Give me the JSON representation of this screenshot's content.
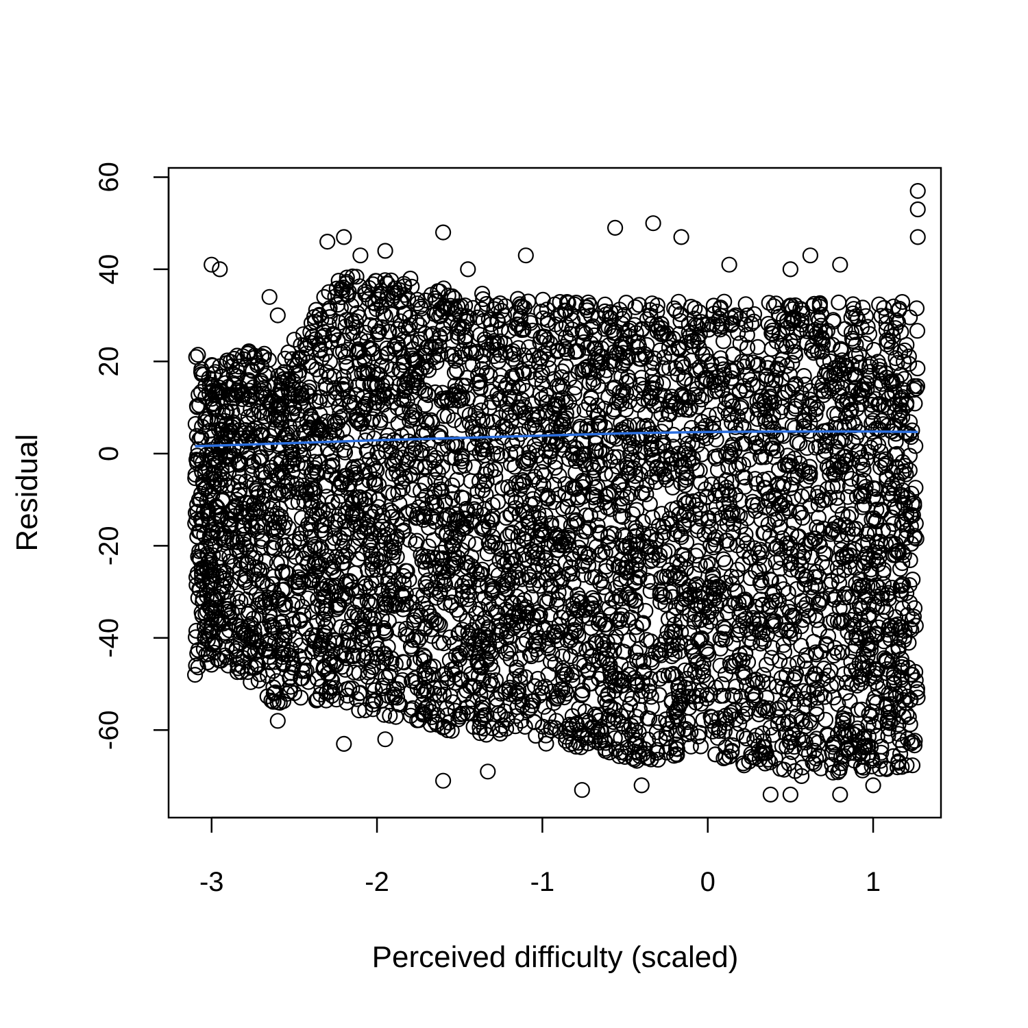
{
  "chart_data": {
    "type": "scatter",
    "title": "",
    "xlabel": "Perceived difficulty (scaled)",
    "ylabel": "Residual",
    "xlim": [
      -3.26,
      1.41
    ],
    "ylim": [
      -79,
      62
    ],
    "x_ticks": [
      -3,
      -2,
      -1,
      0,
      1
    ],
    "y_ticks": [
      -60,
      -40,
      -20,
      0,
      20,
      40,
      60
    ],
    "x_tick_labels": [
      "-3",
      "-2",
      "-1",
      "0",
      "1"
    ],
    "y_tick_labels": [
      "-60",
      "-40",
      "-20",
      "0",
      "20",
      "40",
      "60"
    ],
    "grid": false,
    "legend": "none",
    "colors": {
      "points": "#000000",
      "trend": "#2b6fe0"
    },
    "x_range": [
      -3.1,
      1.27
    ],
    "upper_envelope": [
      [
        -3.1,
        23
      ],
      [
        -2.95,
        19
      ],
      [
        -2.75,
        25
      ],
      [
        -2.6,
        20
      ],
      [
        -2.4,
        30
      ],
      [
        -2.2,
        40
      ],
      [
        -2.0,
        38
      ],
      [
        -1.8,
        38
      ],
      [
        -1.6,
        36
      ],
      [
        -1.2,
        34
      ],
      [
        -0.8,
        33
      ],
      [
        -0.4,
        33
      ],
      [
        0.0,
        33
      ],
      [
        0.4,
        33
      ],
      [
        0.8,
        33
      ],
      [
        1.27,
        33
      ]
    ],
    "lower_envelope": [
      [
        -3.1,
        -48
      ],
      [
        -2.95,
        -45
      ],
      [
        -2.75,
        -50
      ],
      [
        -2.6,
        -55
      ],
      [
        -2.4,
        -54
      ],
      [
        -2.2,
        -55
      ],
      [
        -2.0,
        -57
      ],
      [
        -1.8,
        -58
      ],
      [
        -1.6,
        -60
      ],
      [
        -1.2,
        -62
      ],
      [
        -0.8,
        -64
      ],
      [
        -0.4,
        -67
      ],
      [
        0.0,
        -65
      ],
      [
        0.4,
        -70
      ],
      [
        0.8,
        -70
      ],
      [
        1.27,
        -68
      ]
    ],
    "outliers": [
      [
        -3.0,
        41
      ],
      [
        -2.95,
        40
      ],
      [
        -2.65,
        34
      ],
      [
        -2.6,
        30
      ],
      [
        -2.3,
        46
      ],
      [
        -2.2,
        47
      ],
      [
        -2.1,
        43
      ],
      [
        -1.95,
        44
      ],
      [
        -1.6,
        48
      ],
      [
        -1.45,
        40
      ],
      [
        -1.1,
        43
      ],
      [
        -0.56,
        49
      ],
      [
        -0.33,
        50
      ],
      [
        -0.16,
        47
      ],
      [
        0.13,
        41
      ],
      [
        0.5,
        40
      ],
      [
        0.62,
        43
      ],
      [
        0.8,
        41
      ],
      [
        1.27,
        57
      ],
      [
        1.27,
        53
      ],
      [
        1.27,
        47
      ],
      [
        -3.1,
        -48
      ],
      [
        -2.9,
        -46
      ],
      [
        -2.6,
        -58
      ],
      [
        -2.2,
        -63
      ],
      [
        -1.95,
        -62
      ],
      [
        -1.6,
        -71
      ],
      [
        -1.33,
        -69
      ],
      [
        -0.76,
        -73
      ],
      [
        -0.4,
        -72
      ],
      [
        0.38,
        -74
      ],
      [
        0.5,
        -74
      ],
      [
        0.8,
        -74
      ],
      [
        1.0,
        -72
      ]
    ],
    "trend_line": {
      "x": [
        -3.1,
        -2.5,
        -2.0,
        -1.5,
        -1.0,
        -0.5,
        0.0,
        0.5,
        1.0,
        1.27
      ],
      "y": [
        1.6,
        2.3,
        2.9,
        3.4,
        3.9,
        4.4,
        4.7,
        4.8,
        4.8,
        4.7
      ]
    }
  }
}
